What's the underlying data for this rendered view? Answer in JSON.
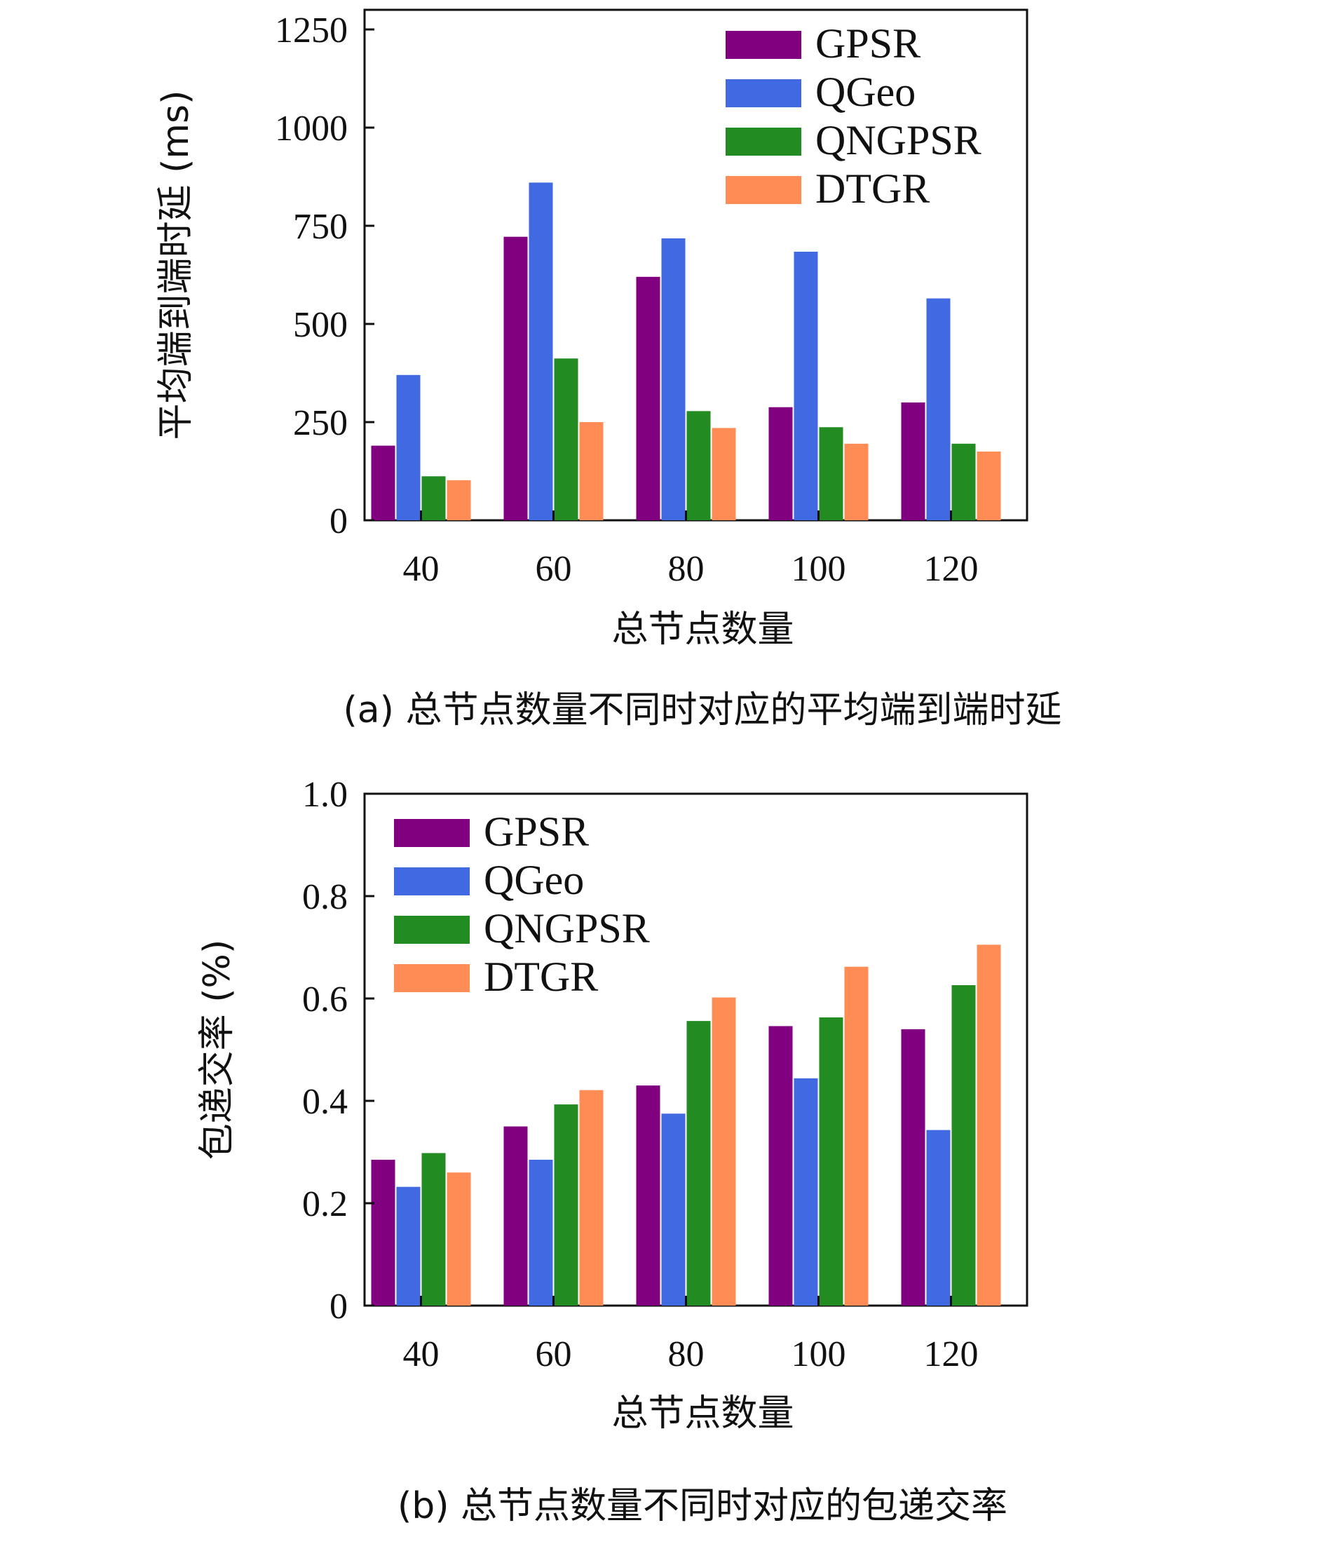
{
  "colors": {
    "GPSR": "#800080",
    "QGeo": "#4169e1",
    "QNGPSR": "#228b22",
    "DTGR": "#ff8c55"
  },
  "chart_data": [
    {
      "type": "bar",
      "caption": "(a) 总节点数量不同时对应的平均端到端时延",
      "xlabel": "总节点数量",
      "ylabel": "平均端到端时延 (ms)",
      "categories": [
        "40",
        "60",
        "80",
        "100",
        "120"
      ],
      "ylim": [
        0,
        1300
      ],
      "yticks": [
        0,
        250,
        500,
        750,
        1000,
        1250
      ],
      "ytick_labels": [
        "0",
        "250",
        "500",
        "750",
        "1000",
        "1250"
      ],
      "legend_position": "top-right",
      "series": [
        {
          "name": "GPSR",
          "values": [
            190,
            722,
            620,
            288,
            300
          ]
        },
        {
          "name": "QGeo",
          "values": [
            370,
            860,
            718,
            684,
            565
          ]
        },
        {
          "name": "QNGPSR",
          "values": [
            112,
            412,
            278,
            237,
            195
          ]
        },
        {
          "name": "DTGR",
          "values": [
            102,
            250,
            235,
            195,
            175
          ]
        }
      ]
    },
    {
      "type": "bar",
      "caption": "(b) 总节点数量不同时对应的包递交率",
      "xlabel": "总节点数量",
      "ylabel": "包递交率 (%)",
      "categories": [
        "40",
        "60",
        "80",
        "100",
        "120"
      ],
      "ylim": [
        0,
        1.0
      ],
      "yticks": [
        0,
        0.2,
        0.4,
        0.6,
        0.8,
        1.0
      ],
      "ytick_labels": [
        "0",
        "0.2",
        "0.4",
        "0.6",
        "0.8",
        "1.0"
      ],
      "legend_position": "top-left",
      "series": [
        {
          "name": "GPSR",
          "values": [
            0.285,
            0.35,
            0.43,
            0.546,
            0.54
          ]
        },
        {
          "name": "QGeo",
          "values": [
            0.232,
            0.285,
            0.375,
            0.444,
            0.343
          ]
        },
        {
          "name": "QNGPSR",
          "values": [
            0.298,
            0.393,
            0.556,
            0.563,
            0.626
          ]
        },
        {
          "name": "DTGR",
          "values": [
            0.26,
            0.421,
            0.602,
            0.662,
            0.705
          ]
        }
      ]
    }
  ]
}
